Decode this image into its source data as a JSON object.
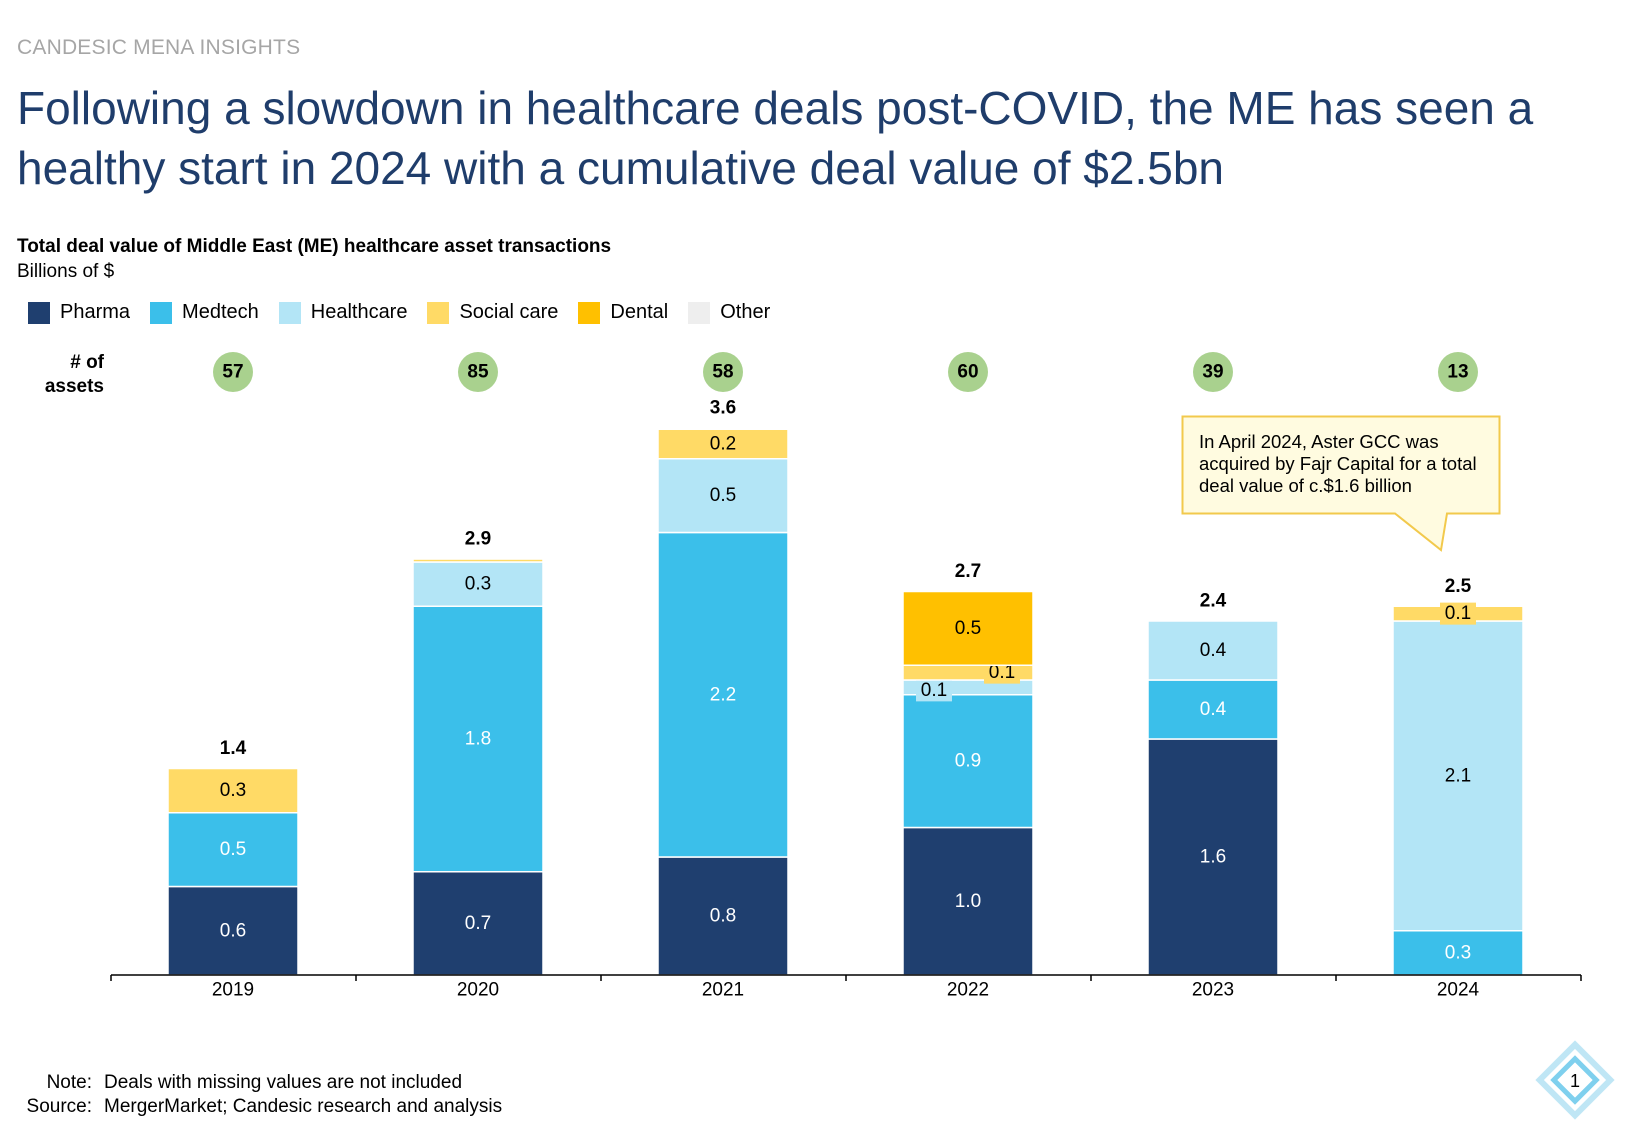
{
  "header": {
    "kicker": "CANDESIC MENA INSIGHTS",
    "headline": "Following a slowdown in healthcare deals post-COVID, the ME has seen a healthy start in 2024 with a cumulative deal value of $2.5bn"
  },
  "assets_label_line1": "# of",
  "assets_label_line2": "assets",
  "callout": {
    "text": "In April 2024, Aster GCC was acquired by Fajr Capital for a total deal value of c.$1.6 billion"
  },
  "footnotes": {
    "note_label": "Note:",
    "note_text": "Deals with missing values are not included",
    "source_label": "Source:",
    "source_text": "MergerMarket; Candesic research and analysis"
  },
  "page_number": "1",
  "colors": {
    "Pharma": "#1f3f6f",
    "Medtech": "#3bbfea",
    "Healthcare": "#b3e5f6",
    "Social care": "#ffda66",
    "Dental": "#ffc000",
    "Other": "#eeeeee",
    "asset_bubble": "#a9d18e",
    "headline": "#1f3d6b"
  },
  "chart_data": {
    "type": "bar",
    "stacked": true,
    "title": "Total deal value of Middle East (ME) healthcare asset transactions",
    "subtitle": "Billions of $",
    "categories": [
      "2019",
      "2020",
      "2021",
      "2022",
      "2023",
      "2024"
    ],
    "series": [
      {
        "name": "Pharma",
        "values": [
          0.6,
          0.7,
          0.8,
          1.0,
          1.6,
          0
        ]
      },
      {
        "name": "Medtech",
        "values": [
          0.5,
          1.8,
          2.2,
          0.9,
          0.4,
          0.3
        ]
      },
      {
        "name": "Healthcare",
        "values": [
          0,
          0.3,
          0.5,
          0.1,
          0.4,
          2.1
        ]
      },
      {
        "name": "Social care",
        "values": [
          0.3,
          0.02,
          0.2,
          0.1,
          0,
          0.1
        ]
      },
      {
        "name": "Dental",
        "values": [
          0,
          0,
          0.01,
          0.5,
          0,
          0
        ]
      },
      {
        "name": "Other",
        "values": [
          0,
          0,
          0,
          0,
          0,
          0
        ]
      }
    ],
    "segment_labels": [
      [
        "0.6",
        "0.7",
        "0.8",
        "1.0",
        "1.6",
        ""
      ],
      [
        "0.5",
        "1.8",
        "2.2",
        "0.9",
        "0.4",
        "0.3"
      ],
      [
        "",
        "0.3",
        "0.5",
        "0.1",
        "0.4",
        "2.1"
      ],
      [
        "0.3",
        "",
        "0.2",
        "0.1",
        "",
        "0.1"
      ],
      [
        "",
        "",
        "",
        "0.5",
        "",
        ""
      ],
      [
        "",
        "",
        "",
        "",
        "",
        ""
      ]
    ],
    "totals": [
      "1.4",
      "2.9",
      "3.6",
      "2.7",
      "2.4",
      "2.5"
    ],
    "asset_counts": [
      "57",
      "85",
      "58",
      "60",
      "39",
      "13"
    ],
    "legend_position": "top-left",
    "grid": false,
    "ylim": [
      0,
      3.6
    ]
  }
}
